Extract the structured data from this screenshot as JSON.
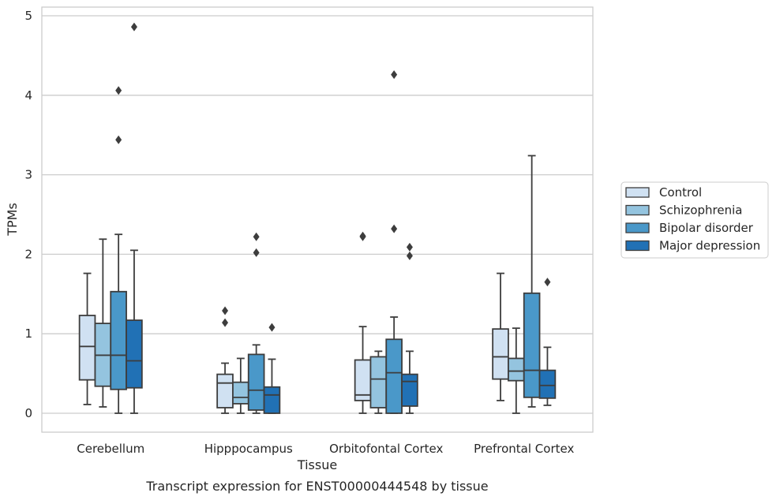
{
  "caption": "Transcript expression for ENST00000444548 by tissue",
  "chart_data": {
    "type": "box",
    "xlabel": "Tissue",
    "ylabel": "TPMs",
    "ylim": [
      -0.23,
      5.1
    ],
    "yticks": [
      0,
      1,
      2,
      3,
      4,
      5
    ],
    "grid": "horizontal",
    "legend_position": "right",
    "categories": [
      "Cerebellum",
      "Hipppocampus",
      "Orbitofontal Cortex",
      "Prefrontal Cortex"
    ],
    "series": [
      {
        "name": "Control",
        "color": "#d0e1f2",
        "boxes": [
          {
            "whislo": 0.11,
            "q1": 0.42,
            "med": 0.84,
            "q3": 1.23,
            "whishi": 1.76,
            "fliers": []
          },
          {
            "whislo": 0.0,
            "q1": 0.07,
            "med": 0.38,
            "q3": 0.49,
            "whishi": 0.63,
            "fliers": [
              1.14,
              1.29
            ]
          },
          {
            "whislo": 0.0,
            "q1": 0.16,
            "med": 0.23,
            "q3": 0.67,
            "whishi": 1.09,
            "fliers": [
              2.22,
              2.23
            ]
          },
          {
            "whislo": 0.16,
            "q1": 0.43,
            "med": 0.71,
            "q3": 1.06,
            "whishi": 1.76,
            "fliers": []
          }
        ]
      },
      {
        "name": "Schizophrenia",
        "color": "#94c4df",
        "boxes": [
          {
            "whislo": 0.08,
            "q1": 0.34,
            "med": 0.73,
            "q3": 1.13,
            "whishi": 2.19,
            "fliers": []
          },
          {
            "whislo": 0.0,
            "q1": 0.12,
            "med": 0.2,
            "q3": 0.39,
            "whishi": 0.69,
            "fliers": []
          },
          {
            "whislo": 0.0,
            "q1": 0.07,
            "med": 0.43,
            "q3": 0.71,
            "whishi": 0.78,
            "fliers": []
          },
          {
            "whislo": 0.0,
            "q1": 0.41,
            "med": 0.53,
            "q3": 0.69,
            "whishi": 1.07,
            "fliers": []
          }
        ]
      },
      {
        "name": "Bipolar disorder",
        "color": "#4a98c9",
        "boxes": [
          {
            "whislo": 0.0,
            "q1": 0.3,
            "med": 0.73,
            "q3": 1.53,
            "whishi": 2.25,
            "fliers": [
              3.44,
              4.06
            ]
          },
          {
            "whislo": 0.0,
            "q1": 0.04,
            "med": 0.29,
            "q3": 0.74,
            "whishi": 0.86,
            "fliers": [
              2.02,
              2.22
            ]
          },
          {
            "whislo": 0.0,
            "q1": 0.0,
            "med": 0.51,
            "q3": 0.93,
            "whishi": 1.21,
            "fliers": [
              2.32,
              4.26
            ]
          },
          {
            "whislo": 0.08,
            "q1": 0.2,
            "med": 0.54,
            "q3": 1.51,
            "whishi": 3.24,
            "fliers": []
          }
        ]
      },
      {
        "name": "Major depression",
        "color": "#2171b5",
        "boxes": [
          {
            "whislo": 0.0,
            "q1": 0.32,
            "med": 0.66,
            "q3": 1.17,
            "whishi": 2.05,
            "fliers": [
              4.86
            ]
          },
          {
            "whislo": 0.0,
            "q1": 0.0,
            "med": 0.23,
            "q3": 0.33,
            "whishi": 0.68,
            "fliers": [
              1.08
            ]
          },
          {
            "whislo": 0.0,
            "q1": 0.09,
            "med": 0.4,
            "q3": 0.49,
            "whishi": 0.78,
            "fliers": [
              1.98,
              2.09
            ]
          },
          {
            "whislo": 0.1,
            "q1": 0.19,
            "med": 0.35,
            "q3": 0.54,
            "whishi": 0.83,
            "fliers": [
              1.65
            ]
          }
        ]
      }
    ]
  }
}
